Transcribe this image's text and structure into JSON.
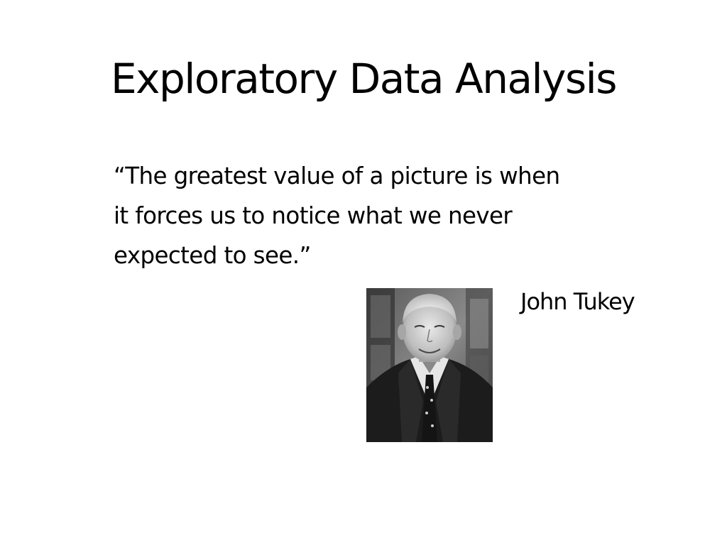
{
  "slide": {
    "title": "Exploratory Data Analysis",
    "quote_lines": [
      "“The greatest value of a picture is when",
      "it forces us to notice what we never",
      "expected to see.”"
    ],
    "attribution": "John Tukey",
    "photo_icon": "portrait-photo"
  },
  "colors": {
    "background": "#ffffff",
    "text": "#000000"
  }
}
